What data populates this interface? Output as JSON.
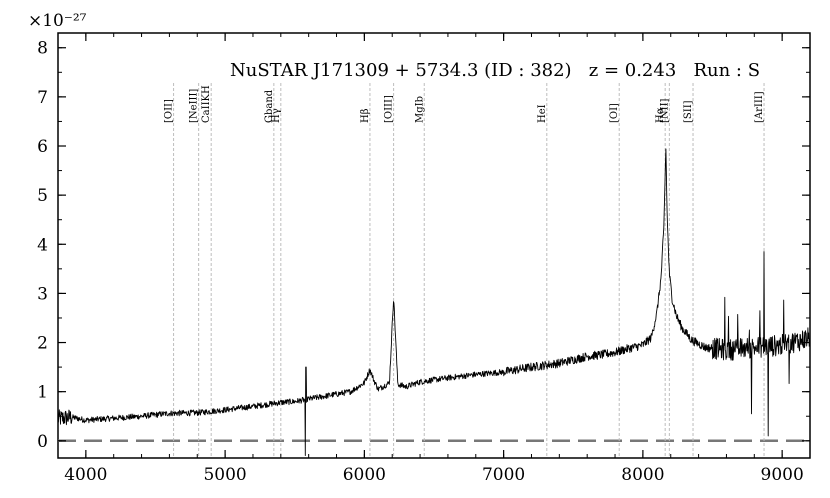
{
  "chart_data": {
    "type": "line",
    "title": "NuSTAR J171309 + 5734.3 (ID : 382)   z = 0.243   Run : S",
    "y_exponent_label": "×10⁻²⁷",
    "xlim": [
      3800,
      9200
    ],
    "ylim": [
      -0.35,
      8.3
    ],
    "x_ticks": [
      4000,
      5000,
      6000,
      7000,
      8000,
      9000
    ],
    "y_ticks": [
      0,
      1,
      2,
      3,
      4,
      5,
      6,
      7,
      8
    ],
    "zero_line": true,
    "series": [
      {
        "x": [
          3800,
          3900,
          4000,
          4200,
          4400,
          4600,
          4800,
          5000,
          5200,
          5400,
          5500,
          5600,
          5800,
          5900,
          6000,
          6040,
          6070,
          6100,
          6180,
          6210,
          6240,
          6300,
          6400,
          6600,
          6800,
          7000,
          7200,
          7400,
          7600,
          7700,
          7800,
          7900,
          8000,
          8060,
          8100,
          8130,
          8150,
          8165,
          8175,
          8190,
          8210,
          8240,
          8280,
          8350,
          8450,
          8600,
          8800,
          9000,
          9200
        ],
        "y": [
          0.45,
          0.48,
          0.42,
          0.46,
          0.5,
          0.56,
          0.57,
          0.63,
          0.7,
          0.78,
          0.8,
          0.85,
          0.95,
          1.0,
          1.18,
          1.45,
          1.22,
          1.05,
          1.18,
          2.95,
          1.15,
          1.1,
          1.2,
          1.28,
          1.35,
          1.4,
          1.5,
          1.58,
          1.72,
          1.75,
          1.8,
          1.88,
          1.95,
          2.1,
          2.6,
          3.3,
          4.3,
          5.95,
          4.5,
          3.4,
          2.9,
          2.55,
          2.3,
          2.05,
          1.9,
          1.85,
          1.9,
          1.95,
          2.1
        ]
      }
    ],
    "emission_lines": [
      {
        "label": "[OII]",
        "x": 4630
      },
      {
        "label": "[NeIII]",
        "x": 4810
      },
      {
        "label": "CaIIKH",
        "x": 4900
      },
      {
        "label": "Gband",
        "x": 5350
      },
      {
        "label": "Hγ",
        "x": 5400
      },
      {
        "label": "Hβ",
        "x": 6040
      },
      {
        "label": "[OIII]",
        "x": 6210
      },
      {
        "label": "MgIb",
        "x": 6430
      },
      {
        "label": "HeI",
        "x": 7310
      },
      {
        "label": "[OI]",
        "x": 7830
      },
      {
        "label": "Hα",
        "x": 8160
      },
      {
        "label": "[NII]",
        "x": 8190
      },
      {
        "label": "[SII]",
        "x": 8360
      },
      {
        "label": "[ArIII]",
        "x": 8870
      }
    ]
  }
}
